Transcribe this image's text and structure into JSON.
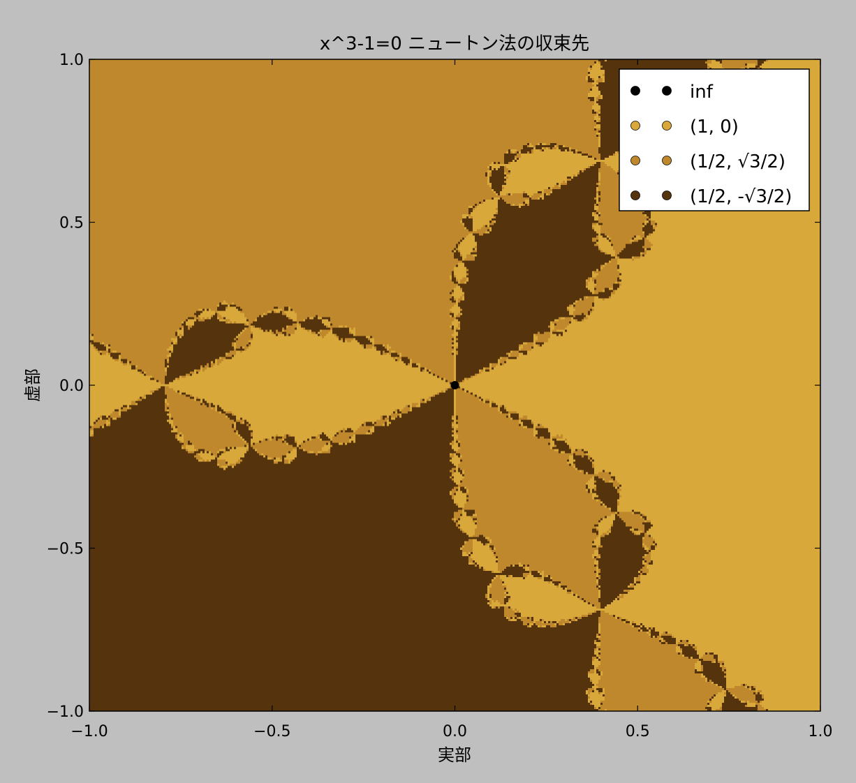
{
  "chart_data": {
    "type": "heatmap",
    "title": "x^3-1=0 ニュートン法の収束先",
    "xlabel": "実部",
    "ylabel": "虚部",
    "xlim": [
      -1.0,
      1.0
    ],
    "ylim": [
      -1.0,
      1.0
    ],
    "xticks": [
      {
        "value": -1.0,
        "label": "−1.0"
      },
      {
        "value": -0.5,
        "label": "−0.5"
      },
      {
        "value": 0.0,
        "label": "0.0"
      },
      {
        "value": 0.5,
        "label": "0.5"
      },
      {
        "value": 1.0,
        "label": "1.0"
      }
    ],
    "yticks": [
      {
        "value": 1.0,
        "label": "1.0"
      },
      {
        "value": 0.5,
        "label": "0.5"
      },
      {
        "value": 0.0,
        "label": "0.0"
      },
      {
        "value": -0.5,
        "label": "−0.5"
      },
      {
        "value": -1.0,
        "label": "−1.0"
      }
    ],
    "grid": false,
    "legend_position": "upper right",
    "categories": [
      {
        "name": "inf",
        "color": "#000000"
      },
      {
        "name": "(1, 0)",
        "color": "#d8a93a"
      },
      {
        "name": "(1/2, √3/2)",
        "color": "#bf882d"
      },
      {
        "name": "(1/2, -√3/2)",
        "color": "#55330d"
      }
    ],
    "points": [
      {
        "x": 0.0,
        "y": 0.0,
        "category": "inf"
      }
    ]
  }
}
